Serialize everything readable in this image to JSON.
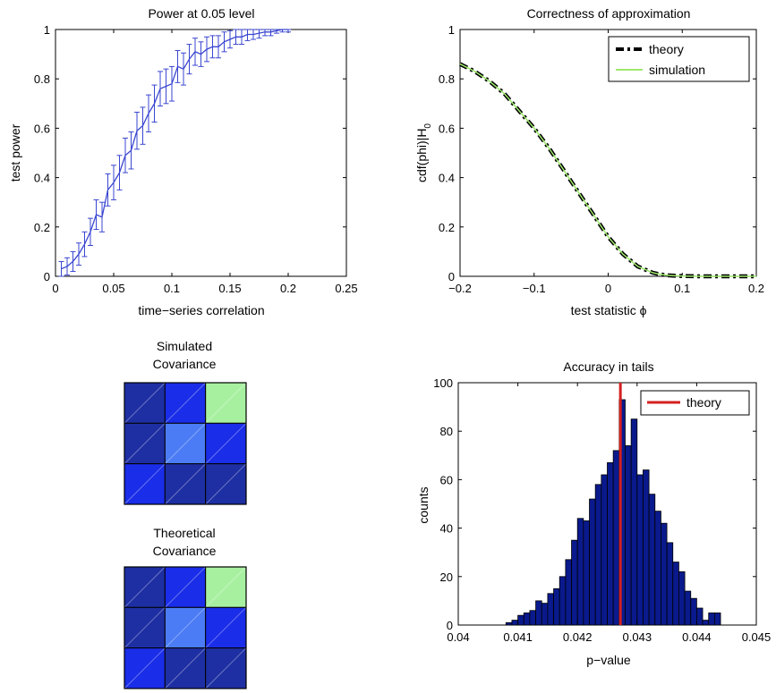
{
  "chart_data": [
    {
      "type": "line",
      "title": "Power at 0.05 level",
      "xlabel": "time−series correlation",
      "ylabel": "test power",
      "xlim": [
        0,
        0.25
      ],
      "ylim": [
        0,
        1
      ],
      "xticks": [
        "0",
        "0.05",
        "0.1",
        "0.15",
        "0.2",
        "0.25"
      ],
      "yticks": [
        "0",
        "0.2",
        "0.4",
        "0.6",
        "0.8",
        "1"
      ],
      "color": "#3a46d0",
      "series": [
        {
          "x": [
            0.005,
            0.01,
            0.015,
            0.02,
            0.025,
            0.03,
            0.035,
            0.04,
            0.045,
            0.05,
            0.055,
            0.06,
            0.065,
            0.07,
            0.075,
            0.08,
            0.085,
            0.09,
            0.095,
            0.1,
            0.105,
            0.11,
            0.115,
            0.12,
            0.125,
            0.13,
            0.135,
            0.14,
            0.145,
            0.15,
            0.155,
            0.16,
            0.165,
            0.17,
            0.175,
            0.18,
            0.185,
            0.19,
            0.195,
            0.2
          ],
          "y": [
            0.03,
            0.04,
            0.06,
            0.09,
            0.13,
            0.18,
            0.25,
            0.24,
            0.35,
            0.38,
            0.42,
            0.49,
            0.51,
            0.59,
            0.61,
            0.66,
            0.7,
            0.76,
            0.77,
            0.78,
            0.85,
            0.84,
            0.88,
            0.91,
            0.9,
            0.92,
            0.93,
            0.93,
            0.95,
            0.96,
            0.97,
            0.97,
            0.98,
            0.98,
            0.985,
            0.99,
            0.99,
            0.995,
            1.0,
            1.0
          ],
          "err": [
            0.03,
            0.035,
            0.04,
            0.045,
            0.05,
            0.055,
            0.06,
            0.06,
            0.065,
            0.07,
            0.07,
            0.07,
            0.075,
            0.075,
            0.075,
            0.075,
            0.075,
            0.07,
            0.07,
            0.07,
            0.065,
            0.065,
            0.06,
            0.055,
            0.05,
            0.05,
            0.045,
            0.045,
            0.04,
            0.035,
            0.03,
            0.03,
            0.025,
            0.02,
            0.02,
            0.015,
            0.015,
            0.01,
            0.01,
            0.01
          ]
        }
      ]
    },
    {
      "type": "line",
      "title": "Correctness of approximation",
      "xlabel": "test statistic ϕ",
      "ylabel_main": "cdf(phi)|H",
      "ylabel_sub": "0",
      "xlim": [
        -0.2,
        0.2
      ],
      "ylim": [
        0,
        1
      ],
      "xticks": [
        "−0.2",
        "−0.1",
        "0",
        "0.1",
        "0.2"
      ],
      "yticks": [
        "0",
        "0.2",
        "0.4",
        "0.6",
        "0.8",
        "1"
      ],
      "legend_position": "top-right",
      "series": [
        {
          "name": "theory",
          "color": "#000000",
          "x": [
            -0.2,
            -0.18,
            -0.16,
            -0.14,
            -0.12,
            -0.1,
            -0.08,
            -0.06,
            -0.04,
            -0.02,
            0,
            0.02,
            0.04,
            0.06,
            0.07,
            0.08,
            0.09,
            0.1,
            0.12,
            0.14,
            0.16,
            0.18,
            0.2
          ],
          "y": [
            0.86,
            0.83,
            0.79,
            0.74,
            0.67,
            0.6,
            0.52,
            0.43,
            0.34,
            0.25,
            0.16,
            0.09,
            0.04,
            0.015,
            0.008,
            0.004,
            0.002,
            0.001,
            0,
            0,
            0,
            0,
            0
          ]
        },
        {
          "name": "simulation",
          "color": "#9ee86e",
          "x": [
            -0.2,
            -0.18,
            -0.16,
            -0.14,
            -0.12,
            -0.1,
            -0.08,
            -0.06,
            -0.04,
            -0.02,
            0,
            0.02,
            0.04,
            0.06,
            0.07,
            0.08,
            0.09,
            0.1,
            0.12,
            0.14,
            0.16,
            0.18,
            0.2
          ],
          "y": [
            0.86,
            0.83,
            0.79,
            0.74,
            0.67,
            0.6,
            0.52,
            0.43,
            0.34,
            0.25,
            0.16,
            0.09,
            0.04,
            0.015,
            0.008,
            0.004,
            0.002,
            0.001,
            0,
            0,
            0,
            0,
            0
          ]
        }
      ]
    },
    {
      "type": "heatmap",
      "title_line1": "Simulated",
      "title_line2": "Covariance",
      "cells": [
        [
          "#1e2fa3",
          "#1a2de8",
          "#a7f0a0"
        ],
        [
          "#1e2fa3",
          "#4b7cf5",
          "#1a2de8"
        ],
        [
          "#1a2de8",
          "#1e2fa3",
          "#1e2fa3"
        ]
      ]
    },
    {
      "type": "heatmap",
      "title_line1": "Theoretical",
      "title_line2": "Covariance",
      "cells": [
        [
          "#1e2fa3",
          "#1a2de8",
          "#a7f0a0"
        ],
        [
          "#1e2fa3",
          "#4b7cf5",
          "#1a2de8"
        ],
        [
          "#1a2de8",
          "#1e2fa3",
          "#1e2fa3"
        ]
      ]
    },
    {
      "type": "bar",
      "title": "Accuracy in tails",
      "xlabel": "p−value",
      "ylabel": "counts",
      "xlim": [
        0.04,
        0.045
      ],
      "ylim": [
        0,
        100
      ],
      "xticks": [
        "0.04",
        "0.041",
        "0.042",
        "0.043",
        "0.044",
        "0.045"
      ],
      "yticks": [
        "0",
        "20",
        "40",
        "60",
        "80",
        "100"
      ],
      "bar_color": "#0a1a8c",
      "bin_width": 0.0001,
      "bin_starts": [
        0.0408,
        0.0409,
        0.041,
        0.0411,
        0.0412,
        0.0413,
        0.0414,
        0.0415,
        0.0416,
        0.0417,
        0.0418,
        0.0419,
        0.042,
        0.0421,
        0.0422,
        0.0423,
        0.0424,
        0.0425,
        0.0426,
        0.0427,
        0.0428,
        0.0429,
        0.043,
        0.0431,
        0.0432,
        0.0433,
        0.0434,
        0.0435,
        0.0436,
        0.0437,
        0.0438,
        0.0439,
        0.044,
        0.0441,
        0.0442,
        0.0443
      ],
      "values": [
        1,
        2,
        4,
        5,
        6,
        10,
        9,
        13,
        15,
        20,
        27,
        35,
        44,
        43,
        52,
        58,
        62,
        67,
        72,
        93,
        74,
        85,
        62,
        64,
        54,
        47,
        42,
        34,
        26,
        22,
        14,
        11,
        7,
        2,
        5,
        5
      ],
      "marker": {
        "name": "theory",
        "x": 0.04272,
        "color": "#d42020"
      },
      "legend_position": "top-right"
    }
  ]
}
